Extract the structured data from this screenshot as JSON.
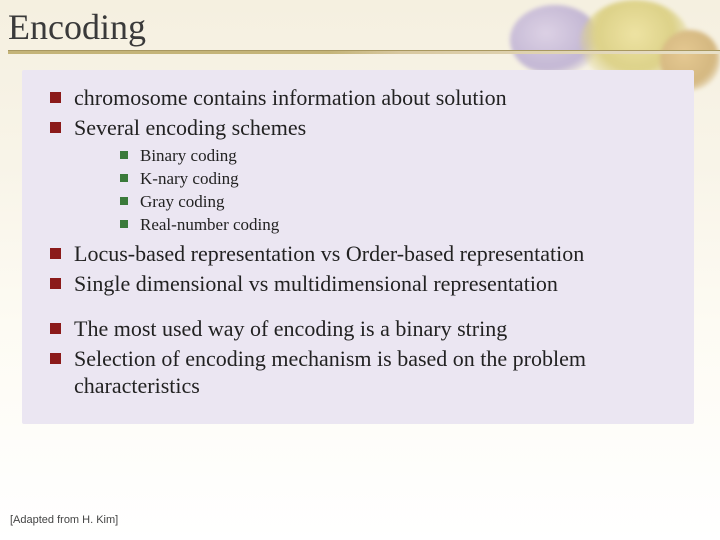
{
  "title": "Encoding",
  "colors": {
    "background_top": "#f5f0e0",
    "background_bottom": "#ffffff",
    "content_panel": "#ebe6f2",
    "rule_dark": "#c4b478",
    "rule_light": "#e8e0c8",
    "bullet_lvl1": "#8b1a1a",
    "bullet_lvl2": "#3a7a3a",
    "title_text": "#3a3a3a",
    "body_text": "#222222",
    "footer_text": "#444444"
  },
  "typography": {
    "title_fontsize_pt": 27,
    "lvl1_fontsize_pt": 17,
    "lvl2_fontsize_pt": 13,
    "footer_fontsize_pt": 8,
    "body_family": "Times New Roman",
    "footer_family": "Arial"
  },
  "bullets": {
    "group1": [
      "chromosome contains information about solution",
      "Several encoding schemes"
    ],
    "sub1": [
      "Binary coding",
      "K-nary coding",
      "Gray coding",
      "Real-number coding"
    ],
    "group2": [
      "Locus-based representation vs Order-based representation",
      "Single dimensional  vs multidimensional representation"
    ],
    "group3": [
      "The most used way of encoding is a binary string",
      "Selection of encoding mechanism is based on the problem characteristics"
    ]
  },
  "footer": "[Adapted from H. Kim]"
}
